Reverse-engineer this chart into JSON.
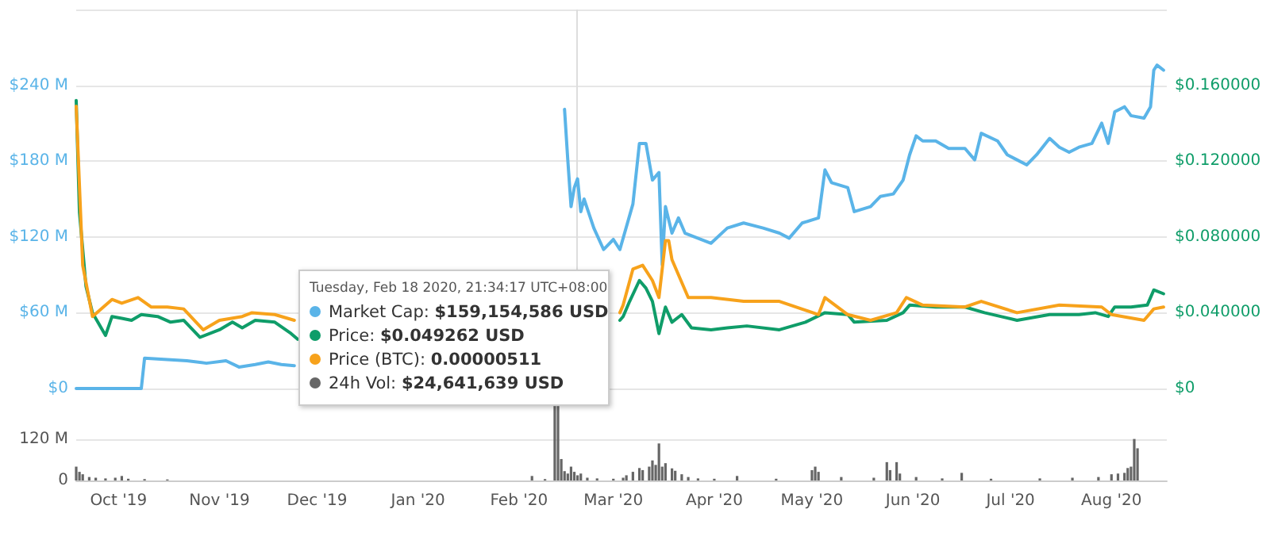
{
  "chart_data": [
    {
      "type": "line",
      "xlim": [
        "2019-09-18",
        "2020-08-18"
      ],
      "ylim": [
        0,
        300
      ],
      "yticks": [
        {
          "value": 0,
          "label": "$0"
        },
        {
          "value": 60,
          "label": "$60 M"
        },
        {
          "value": 120,
          "label": "$120 M"
        },
        {
          "value": 180,
          "label": "$180 M"
        },
        {
          "value": 240,
          "label": "$240 M"
        },
        {
          "value": 300,
          "label": null
        }
      ],
      "y2lim": [
        0,
        0.2
      ],
      "y2ticks": [
        {
          "value": 0,
          "label": "$0"
        },
        {
          "value": 0.04,
          "label": "$0.040000"
        },
        {
          "value": 0.08,
          "label": "$0.080000"
        },
        {
          "value": 0.12,
          "label": "$0.120000"
        },
        {
          "value": 0.16,
          "label": "$0.160000"
        },
        {
          "value": 0.2,
          "label": null
        }
      ],
      "grid": "y",
      "tick_labels": "y",
      "marker": "none",
      "line_style": "solid",
      "ref_lines": [
        {
          "axis": "x",
          "value": "2020-02-18T21:34",
          "color": "#dddddd"
        }
      ],
      "annotations": [
        "Tuesday, Feb 18 2020, 21:34:17 UTC+08:00",
        "Market Cap: $159,154,586 USD",
        "Price: $0.049262 USD",
        "Price (BTC): 0.00000511",
        "24h Vol: $24,641,639 USD"
      ],
      "series": [
        {
          "color": "#5ab4e8",
          "x": [
            "2019-09-18",
            "2019-10-08",
            "2019-10-09",
            "2019-10-15",
            "2019-10-22",
            "2019-10-28",
            "2019-11-03",
            "2019-11-07",
            "2019-11-12",
            "2019-11-16",
            "2019-11-20",
            "2019-11-24",
            "2019-11-27",
            "2020-02-14",
            "2020-02-15",
            "2020-02-16",
            "2020-02-17",
            "2020-02-18",
            "2020-02-19",
            "2020-02-20",
            "2020-02-21",
            "2020-02-24",
            "2020-02-27",
            "2020-03-01",
            "2020-03-03",
            "2020-03-07",
            "2020-03-09",
            "2020-03-11",
            "2020-03-13",
            "2020-03-15",
            "2020-03-16",
            "2020-03-17",
            "2020-03-19",
            "2020-03-21",
            "2020-03-23",
            "2020-03-31",
            "2020-04-05",
            "2020-04-10",
            "2020-04-16",
            "2020-04-21",
            "2020-04-24",
            "2020-04-28",
            "2020-05-03",
            "2020-05-05",
            "2020-05-07",
            "2020-05-12",
            "2020-05-14",
            "2020-05-19",
            "2020-05-22",
            "2020-05-26",
            "2020-05-29",
            "2020-05-31",
            "2020-06-02",
            "2020-06-04",
            "2020-06-08",
            "2020-06-12",
            "2020-06-17",
            "2020-06-20",
            "2020-06-22",
            "2020-06-27",
            "2020-06-30",
            "2020-07-03",
            "2020-07-06",
            "2020-07-09",
            "2020-07-13",
            "2020-07-16",
            "2020-07-19",
            "2020-07-22",
            "2020-07-26",
            "2020-07-29",
            "2020-07-31",
            "2020-08-02",
            "2020-08-05",
            "2020-08-07",
            "2020-08-11",
            "2020-08-13",
            "2020-08-14",
            "2020-08-15",
            "2020-08-17"
          ],
          "values": [
            0,
            0,
            24,
            23,
            22,
            20,
            22,
            17,
            19,
            21,
            19,
            18,
            null,
            null,
            221,
            181,
            144,
            159,
            166,
            140,
            150,
            127,
            110,
            118,
            110,
            146,
            194,
            194,
            165,
            171,
            98,
            144,
            123,
            135,
            123,
            115,
            127,
            131,
            127,
            123,
            119,
            131,
            135,
            173,
            163,
            159,
            140,
            144,
            152,
            154,
            165,
            185,
            200,
            196,
            196,
            190,
            190,
            181,
            202,
            196,
            185,
            181,
            177,
            185,
            198,
            191,
            187,
            191,
            194,
            210,
            194,
            219,
            223,
            216,
            214,
            223,
            252,
            256,
            252
          ]
        },
        {
          "color": "#0f9d69",
          "axis": "y2",
          "x": [
            "2019-09-18",
            "2019-09-19",
            "2019-09-21",
            "2019-09-23",
            "2019-09-27",
            "2019-09-29",
            "2019-10-02",
            "2019-10-05",
            "2019-10-08",
            "2019-10-13",
            "2019-10-17",
            "2019-10-21",
            "2019-10-26",
            "2019-11-01",
            "2019-11-05",
            "2019-11-08",
            "2019-11-12",
            "2019-11-18",
            "2019-11-23",
            "2019-11-25",
            "2019-11-28",
            "2020-03-03",
            "2020-03-04",
            "2020-03-06",
            "2020-03-09",
            "2020-03-11",
            "2020-03-13",
            "2020-03-15",
            "2020-03-17",
            "2020-03-19",
            "2020-03-22",
            "2020-03-25",
            "2020-03-31",
            "2020-04-05",
            "2020-04-11",
            "2020-04-21",
            "2020-04-29",
            "2020-05-05",
            "2020-05-12",
            "2020-05-14",
            "2020-05-24",
            "2020-05-29",
            "2020-05-31",
            "2020-06-08",
            "2020-06-17",
            "2020-06-23",
            "2020-07-03",
            "2020-07-13",
            "2020-07-22",
            "2020-07-27",
            "2020-07-31",
            "2020-08-02",
            "2020-08-07",
            "2020-08-12",
            "2020-08-14",
            "2020-08-17"
          ],
          "values": [
            0.152,
            0.093,
            0.054,
            0.04,
            0.028,
            0.038,
            0.037,
            0.036,
            0.039,
            0.038,
            0.035,
            0.036,
            0.027,
            0.031,
            0.035,
            0.032,
            0.036,
            0.035,
            0.029,
            0.026,
            null,
            0.036,
            0.038,
            0.046,
            0.057,
            0.053,
            0.046,
            0.029,
            0.043,
            0.035,
            0.039,
            0.032,
            0.031,
            0.032,
            0.033,
            0.031,
            0.035,
            0.04,
            0.039,
            0.035,
            0.036,
            0.04,
            0.044,
            0.043,
            0.043,
            0.04,
            0.036,
            0.039,
            0.039,
            0.04,
            0.038,
            0.043,
            0.043,
            0.044,
            0.052,
            0.05
          ]
        },
        {
          "color": "#f7a21b",
          "axis": "y2",
          "x": [
            "2019-09-18",
            "2019-09-20",
            "2019-09-23",
            "2019-09-29",
            "2019-10-02",
            "2019-10-07",
            "2019-10-11",
            "2019-10-16",
            "2019-10-21",
            "2019-10-27",
            "2019-11-01",
            "2019-11-08",
            "2019-11-11",
            "2019-11-18",
            "2019-11-24",
            "2019-11-28",
            "2020-03-03",
            "2020-03-04",
            "2020-03-07",
            "2020-03-10",
            "2020-03-13",
            "2020-03-15",
            "2020-03-17",
            "2020-03-18",
            "2020-03-19",
            "2020-03-24",
            "2020-03-31",
            "2020-04-10",
            "2020-04-21",
            "2020-05-03",
            "2020-05-05",
            "2020-05-12",
            "2020-05-19",
            "2020-05-27",
            "2020-05-30",
            "2020-06-04",
            "2020-06-17",
            "2020-06-22",
            "2020-07-03",
            "2020-07-16",
            "2020-07-29",
            "2020-08-01",
            "2020-08-11",
            "2020-08-14",
            "2020-08-17"
          ],
          "values": [
            0.149,
            0.065,
            0.038,
            0.047,
            0.045,
            0.048,
            0.043,
            0.043,
            0.042,
            0.031,
            0.036,
            0.038,
            0.04,
            0.039,
            0.036,
            null,
            0.04,
            0.044,
            0.063,
            0.065,
            0.057,
            0.048,
            0.078,
            0.078,
            0.068,
            0.048,
            0.048,
            0.046,
            0.046,
            0.039,
            0.048,
            0.039,
            0.036,
            0.04,
            0.048,
            0.044,
            0.043,
            0.046,
            0.04,
            0.044,
            0.043,
            0.039,
            0.036,
            0.042,
            0.043
          ]
        }
      ]
    },
    {
      "type": "bar",
      "xlim": [
        "2019-09-18",
        "2020-08-18"
      ],
      "xticks": [
        {
          "value": "2019-10-01",
          "label": "Oct '19"
        },
        {
          "value": "2019-11-01",
          "label": "Nov '19"
        },
        {
          "value": "2019-12-01",
          "label": "Dec '19"
        },
        {
          "value": "2020-01-01",
          "label": "Jan '20"
        },
        {
          "value": "2020-02-01",
          "label": "Feb '20"
        },
        {
          "value": "2020-03-01",
          "label": "Mar '20"
        },
        {
          "value": "2020-04-01",
          "label": "Apr '20"
        },
        {
          "value": "2020-05-01",
          "label": "May '20"
        },
        {
          "value": "2020-06-01",
          "label": "Jun '20"
        },
        {
          "value": "2020-07-01",
          "label": "Jul '20"
        },
        {
          "value": "2020-08-01",
          "label": "Aug '20"
        }
      ],
      "ylim": [
        0,
        220
      ],
      "yticks": [
        0,
        {
          "value": 120,
          "label": "120 M"
        }
      ],
      "grid": "y",
      "color": "#666666",
      "x": [
        "2019-09-18",
        "2019-09-19",
        "2019-09-20",
        "2019-09-22",
        "2019-09-24",
        "2019-09-27",
        "2019-09-30",
        "2019-10-02",
        "2019-10-04",
        "2019-10-09",
        "2019-10-16",
        "2020-02-05",
        "2020-02-09",
        "2020-02-12",
        "2020-02-13",
        "2020-02-14",
        "2020-02-15",
        "2020-02-16",
        "2020-02-17",
        "2020-02-18",
        "2020-02-19",
        "2020-02-20",
        "2020-02-22",
        "2020-02-25",
        "2020-03-01",
        "2020-03-04",
        "2020-03-05",
        "2020-03-07",
        "2020-03-09",
        "2020-03-10",
        "2020-03-12",
        "2020-03-13",
        "2020-03-14",
        "2020-03-15",
        "2020-03-16",
        "2020-03-17",
        "2020-03-19",
        "2020-03-20",
        "2020-03-22",
        "2020-03-24",
        "2020-03-27",
        "2020-04-01",
        "2020-04-08",
        "2020-04-20",
        "2020-05-01",
        "2020-05-02",
        "2020-05-03",
        "2020-05-10",
        "2020-05-20",
        "2020-05-24",
        "2020-05-25",
        "2020-05-27",
        "2020-05-28",
        "2020-06-02",
        "2020-06-10",
        "2020-06-16",
        "2020-06-25",
        "2020-07-10",
        "2020-07-20",
        "2020-07-28",
        "2020-08-01",
        "2020-08-03",
        "2020-08-05",
        "2020-08-06",
        "2020-08-07",
        "2020-08-08",
        "2020-08-09"
      ],
      "values": [
        40,
        25,
        18,
        10,
        8,
        6,
        8,
        13,
        5,
        4,
        3,
        13,
        4,
        215,
        215,
        62,
        27,
        20,
        40,
        25,
        15,
        20,
        8,
        6,
        5,
        8,
        15,
        25,
        36,
        30,
        40,
        58,
        45,
        107,
        40,
        50,
        35,
        28,
        18,
        10,
        6,
        5,
        13,
        5,
        30,
        40,
        25,
        10,
        8,
        53,
        30,
        53,
        20,
        10,
        6,
        22,
        5,
        6,
        8,
        10,
        18,
        20,
        22,
        36,
        40,
        120,
        93
      ]
    }
  ]
}
